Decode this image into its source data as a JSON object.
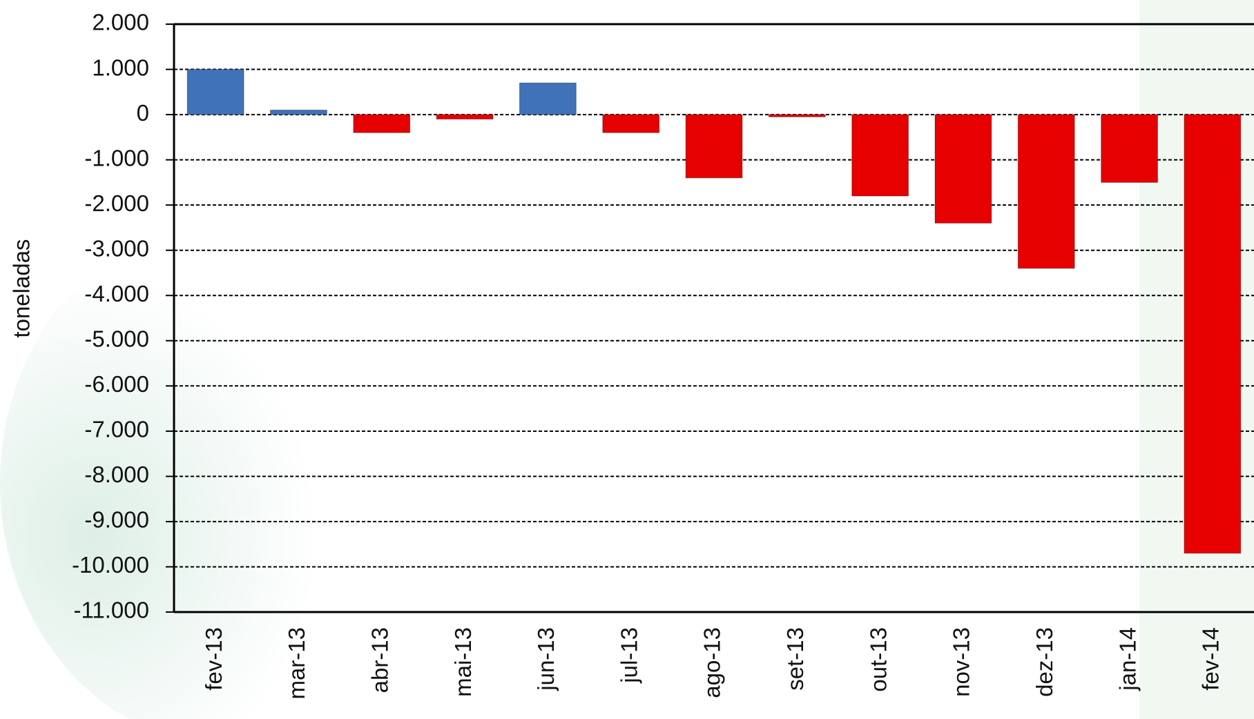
{
  "chart_data": {
    "type": "bar",
    "y_label": "toneladas",
    "categories": [
      "fev-13",
      "mar-13",
      "abr-13",
      "mai-13",
      "jun-13",
      "jul-13",
      "ago-13",
      "set-13",
      "out-13",
      "nov-13",
      "dez-13",
      "jan-14",
      "fev-14"
    ],
    "values": [
      1000,
      100,
      -400,
      -100,
      700,
      -400,
      -1400,
      -50,
      -1800,
      -2400,
      -3400,
      -1500,
      -9700
    ],
    "positive_color": "#3f72b8",
    "negative_color": "#e60000",
    "ylim": [
      -11000,
      2000
    ],
    "yticks": [
      {
        "value": -11000,
        "label": "-11.000"
      },
      {
        "value": -10000,
        "label": "-10.000"
      },
      {
        "value": -9000,
        "label": "-9.000"
      },
      {
        "value": -8000,
        "label": "-8.000"
      },
      {
        "value": -7000,
        "label": "-7.000"
      },
      {
        "value": -6000,
        "label": "-6.000"
      },
      {
        "value": -5000,
        "label": "-5.000"
      },
      {
        "value": -4000,
        "label": "-4.000"
      },
      {
        "value": -3000,
        "label": "-3.000"
      },
      {
        "value": -2000,
        "label": "-2.000"
      },
      {
        "value": -1000,
        "label": "-1.000"
      },
      0,
      {
        "value": 1000,
        "label": "1.000"
      },
      {
        "value": 2000,
        "label": "2.000"
      }
    ],
    "grid": true
  }
}
